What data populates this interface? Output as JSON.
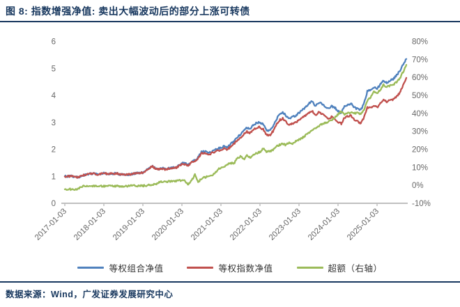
{
  "figure": {
    "title": "图 8: 指数增强净值: 卖出大幅波动后的部分上涨可转债",
    "source": "数据来源：Wind，广发证券发展研究中心"
  },
  "colors": {
    "accent_navy": "#17375E",
    "series_blue": "#4F81BD",
    "series_red": "#C0504D",
    "series_green": "#9BBB59",
    "axis_text": "#666666",
    "axis_line": "#BFBFBF"
  },
  "legend": {
    "items": [
      {
        "label": "等权组合净值",
        "color": "#4F81BD"
      },
      {
        "label": "等权指数净值",
        "color": "#C0504D"
      },
      {
        "label": "超额（右轴）",
        "color": "#9BBB59"
      }
    ]
  },
  "chart_data": {
    "type": "line",
    "title": "",
    "xlabel": "",
    "ylabel_left": "",
    "ylabel_right": "",
    "x_tick_labels": [
      "2017-01-03",
      "2018-01-03",
      "2019-01-03",
      "2020-01-03",
      "2021-01-03",
      "2022-01-03",
      "2023-01-03",
      "2024-01-03",
      "2025-01-03"
    ],
    "x_start": "2017-01",
    "x_step_months": 1,
    "x_end": "2025-10",
    "left_axis": {
      "range": [
        0,
        6
      ],
      "ticks": [
        6,
        5,
        4,
        3,
        2,
        1,
        0
      ]
    },
    "right_axis": {
      "range": [
        -10,
        80
      ],
      "ticks": [
        "80%",
        "70%",
        "60%",
        "50%",
        "40%",
        "30%",
        "20%",
        "10%",
        "0%",
        "-10%"
      ],
      "tick_values": [
        80,
        70,
        60,
        50,
        40,
        30,
        20,
        10,
        0,
        -10
      ]
    },
    "grid": "off",
    "legend_position": "bottom",
    "series": [
      {
        "name": "等权组合净值",
        "axis": "left",
        "color": "#4F81BD",
        "values": [
          1.0,
          1.0,
          1.01,
          0.98,
          0.97,
          1.0,
          1.05,
          1.08,
          1.1,
          1.1,
          1.07,
          1.08,
          1.12,
          1.09,
          1.1,
          1.1,
          1.11,
          1.07,
          1.08,
          1.06,
          1.07,
          1.09,
          1.12,
          1.12,
          1.14,
          1.22,
          1.32,
          1.37,
          1.28,
          1.27,
          1.3,
          1.27,
          1.3,
          1.31,
          1.33,
          1.4,
          1.5,
          1.48,
          1.42,
          1.55,
          1.6,
          1.7,
          1.9,
          1.92,
          1.88,
          1.9,
          1.98,
          2.02,
          2.07,
          2.12,
          2.08,
          2.2,
          2.3,
          2.45,
          2.55,
          2.7,
          2.8,
          2.76,
          2.9,
          2.98,
          3.0,
          2.92,
          2.72,
          2.68,
          2.85,
          3.1,
          3.3,
          3.38,
          3.25,
          3.12,
          3.2,
          3.25,
          3.35,
          3.45,
          3.55,
          3.7,
          3.8,
          3.6,
          3.72,
          3.7,
          3.6,
          3.5,
          3.6,
          3.55,
          3.42,
          3.35,
          3.6,
          3.65,
          3.7,
          3.55,
          3.5,
          3.45,
          3.7,
          4.15,
          4.2,
          4.3,
          4.25,
          4.4,
          4.55,
          4.45,
          4.55,
          4.6,
          4.75,
          4.9,
          5.15,
          5.35
        ]
      },
      {
        "name": "等权指数净值",
        "axis": "left",
        "color": "#C0504D",
        "values": [
          1.0,
          1.0,
          1.01,
          0.98,
          0.97,
          1.0,
          1.05,
          1.08,
          1.1,
          1.1,
          1.07,
          1.08,
          1.12,
          1.09,
          1.1,
          1.1,
          1.11,
          1.07,
          1.08,
          1.06,
          1.07,
          1.09,
          1.12,
          1.12,
          1.14,
          1.21,
          1.31,
          1.36,
          1.27,
          1.26,
          1.28,
          1.25,
          1.28,
          1.29,
          1.31,
          1.37,
          1.47,
          1.45,
          1.39,
          1.51,
          1.56,
          1.66,
          1.84,
          1.86,
          1.82,
          1.84,
          1.91,
          1.94,
          1.98,
          2.03,
          1.99,
          2.1,
          2.2,
          2.34,
          2.43,
          2.56,
          2.65,
          2.61,
          2.74,
          2.81,
          2.82,
          2.74,
          2.55,
          2.51,
          2.67,
          2.9,
          3.08,
          3.15,
          3.02,
          2.89,
          2.96,
          3.0,
          3.08,
          3.16,
          3.24,
          3.36,
          3.44,
          3.26,
          3.36,
          3.33,
          3.23,
          3.13,
          3.2,
          3.14,
          3.0,
          2.95,
          3.18,
          3.22,
          3.25,
          3.1,
          3.05,
          2.95,
          3.18,
          3.55,
          3.55,
          3.62,
          3.55,
          3.7,
          3.85,
          3.75,
          3.82,
          3.85,
          3.95,
          4.1,
          4.38,
          4.65
        ]
      },
      {
        "name": "超额（右轴）",
        "axis": "right",
        "color": "#9BBB59",
        "values": [
          -2.2,
          -2.2,
          -2.2,
          -2.2,
          -2.2,
          -0.6,
          -0.5,
          -0.5,
          -0.5,
          -0.5,
          -0.5,
          -0.5,
          -0.5,
          -0.5,
          -0.4,
          -0.4,
          -0.4,
          -0.4,
          -0.4,
          -0.4,
          -0.3,
          -0.3,
          -0.3,
          -0.3,
          -0.3,
          -0.1,
          0.1,
          0.4,
          0.6,
          1.8,
          2.0,
          2.1,
          2.2,
          2.3,
          2.4,
          2.6,
          2.8,
          2.4,
          0.4,
          3.0,
          5.8,
          1.8,
          3.6,
          4.5,
          4.8,
          5.5,
          6.5,
          8.5,
          9.9,
          10.6,
          11.4,
          12.5,
          12.0,
          15.0,
          16.2,
          14.5,
          16.5,
          15.2,
          17.0,
          17.8,
          18.5,
          20.5,
          18.8,
          18.6,
          19.8,
          21.5,
          22.5,
          23.0,
          22.4,
          23.7,
          23.0,
          24.5,
          25.3,
          26.5,
          27.7,
          29.0,
          30.4,
          31.6,
          33.0,
          34.0,
          34.6,
          35.5,
          36.3,
          37.5,
          39.5,
          41.0,
          39.5,
          40.0,
          40.5,
          40.0,
          40.5,
          39.5,
          42.0,
          47.0,
          49.0,
          52.0,
          51.0,
          53.0,
          56.0,
          54.5,
          55.5,
          56.0,
          57.5,
          59.5,
          63.0,
          67.0
        ]
      }
    ]
  }
}
